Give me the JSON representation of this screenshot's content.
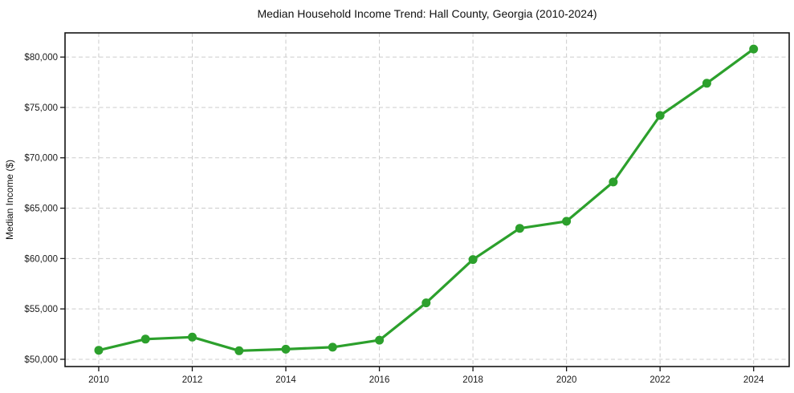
{
  "chart_data": {
    "type": "line",
    "title": "Median Household Income Trend: Hall County, Georgia (2010-2024)",
    "xlabel": "",
    "ylabel": "Median Income ($)",
    "x": [
      2010,
      2011,
      2012,
      2013,
      2014,
      2015,
      2016,
      2017,
      2018,
      2019,
      2020,
      2021,
      2022,
      2023,
      2024
    ],
    "values": [
      50900,
      52000,
      52200,
      50850,
      51000,
      51200,
      51900,
      55600,
      59900,
      63000,
      63700,
      67600,
      74200,
      77400,
      80800
    ],
    "xticks": [
      2010,
      2012,
      2014,
      2016,
      2018,
      2020,
      2022,
      2024
    ],
    "xtick_labels": [
      "2010",
      "2012",
      "2014",
      "2016",
      "2018",
      "2020",
      "2022",
      "2024"
    ],
    "yticks": [
      50000,
      55000,
      60000,
      65000,
      70000,
      75000,
      80000
    ],
    "ytick_labels": [
      "$50,000",
      "$55,000",
      "$60,000",
      "$65,000",
      "$70,000",
      "$75,000",
      "$80,000"
    ],
    "xlim": [
      2009.28,
      2024.76
    ],
    "ylim": [
      49280,
      82400
    ],
    "grid": true,
    "legend": "none",
    "line_color": "#2ca02c",
    "marker": "filled-circle",
    "grid_color": "#cccccc",
    "axis_color": "#141414",
    "background": "#ffffff"
  }
}
